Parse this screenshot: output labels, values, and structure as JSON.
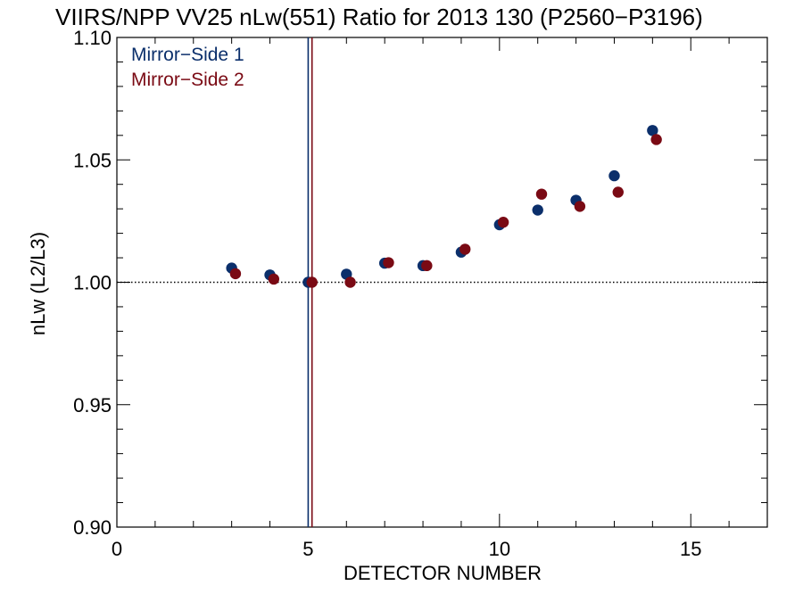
{
  "chart_data": {
    "type": "scatter",
    "title": "VIIRS/NPP VV25 nLw(551) Ratio for 2013 130 (P2560−P3196)",
    "xlabel": "DETECTOR NUMBER",
    "ylabel": "nLw (L2/L3)",
    "xlim": [
      0,
      17
    ],
    "ylim": [
      0.9,
      1.1
    ],
    "xticks": [
      0,
      5,
      10,
      15
    ],
    "xtick_labels": [
      "0",
      "5",
      "10",
      "15"
    ],
    "yticks": [
      0.9,
      0.95,
      1.0,
      1.05,
      1.1
    ],
    "ytick_labels": [
      "0.90",
      "0.95",
      "1.00",
      "1.05",
      "1.10"
    ],
    "reference_line": {
      "y": 1.0,
      "style": "dotted",
      "color": "#000000"
    },
    "vertical_lines": [
      {
        "x": 5.0,
        "color": "#0b2f6b"
      },
      {
        "x": 5.1,
        "color": "#7a0a14"
      }
    ],
    "legend_position": "top-left",
    "grid": false,
    "series": [
      {
        "name": "Mirror−Side 1",
        "color": "#0b2f6b",
        "x": [
          3,
          4,
          5,
          6,
          7,
          8,
          9,
          10,
          11,
          12,
          13,
          14
        ],
        "y": [
          1.0058,
          1.003,
          1.0,
          1.0033,
          1.0078,
          1.0068,
          1.0123,
          1.0235,
          1.0295,
          1.0335,
          1.0435,
          1.062
        ]
      },
      {
        "name": "Mirror−Side 2",
        "color": "#7a0a14",
        "x": [
          3.1,
          4.1,
          5.1,
          6.1,
          7.1,
          8.1,
          9.1,
          10.1,
          11.1,
          12.1,
          13.1,
          14.1
        ],
        "y": [
          1.0035,
          1.0013,
          1.0,
          1.0,
          1.008,
          1.0068,
          1.0135,
          1.0245,
          1.036,
          1.031,
          1.0368,
          1.0583
        ]
      }
    ]
  }
}
